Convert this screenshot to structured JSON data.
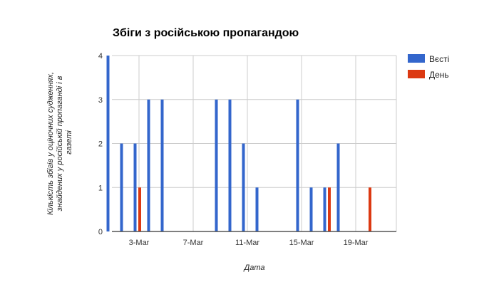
{
  "chart_data": {
    "type": "bar",
    "title": "Збіги з російською пропагандою",
    "xlabel": "Дата",
    "ylabel_lines": [
      "Кількість збігів у оціночних судженнях,",
      "знайдених у російській пропаганді і в",
      "газеті"
    ],
    "ylim": [
      0,
      4
    ],
    "yticks": [
      0,
      1,
      2,
      3,
      4
    ],
    "xlim_days": [
      1,
      22
    ],
    "xtick_labels": [
      "3-Mar",
      "7-Mar",
      "11-Mar",
      "15-Mar",
      "19-Mar"
    ],
    "xticks_day": [
      3,
      7,
      11,
      15,
      19
    ],
    "grid": true,
    "legend_position": "right",
    "x_dates": [
      "1-Mar",
      "2-Mar",
      "3-Mar",
      "4-Mar",
      "5-Mar",
      "6-Mar",
      "7-Mar",
      "8-Mar",
      "9-Mar",
      "10-Mar",
      "11-Mar",
      "12-Mar",
      "13-Mar",
      "14-Mar",
      "15-Mar",
      "16-Mar",
      "17-Mar",
      "18-Mar",
      "19-Mar",
      "20-Mar",
      "21-Mar"
    ],
    "series": [
      {
        "name": "Вєсті",
        "color": "#3366cc",
        "values": [
          4,
          2,
          2,
          3,
          3,
          0,
          0,
          0,
          3,
          3,
          2,
          1,
          0,
          0,
          3,
          1,
          1,
          2,
          0,
          0,
          0
        ]
      },
      {
        "name": "День",
        "color": "#dc3912",
        "values": [
          0,
          0,
          1,
          0,
          0,
          0,
          0,
          0,
          0,
          0,
          0,
          0,
          0,
          0,
          0,
          0,
          1,
          0,
          0,
          1,
          0
        ]
      }
    ]
  }
}
